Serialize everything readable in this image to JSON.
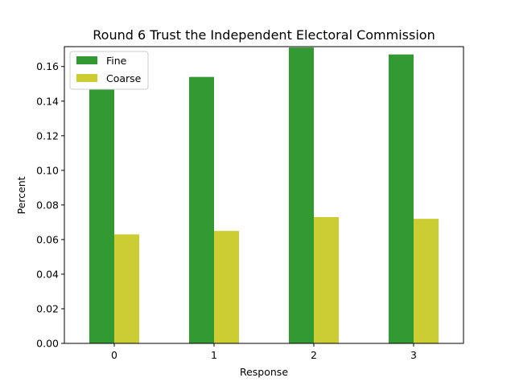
{
  "chart_data": {
    "type": "bar",
    "title": "Round 6 Trust the Independent Electoral Commission",
    "xlabel": "Response",
    "ylabel": "Percent",
    "categories": [
      "0",
      "1",
      "2",
      "3"
    ],
    "series": [
      {
        "name": "Fine",
        "color": "#339933",
        "values": [
          0.147,
          0.154,
          0.171,
          0.167
        ]
      },
      {
        "name": "Coarse",
        "color": "#cccc33",
        "values": [
          0.063,
          0.065,
          0.073,
          0.072
        ]
      }
    ],
    "ylim": [
      0,
      0.1715
    ],
    "yticks": [
      "0.00",
      "0.02",
      "0.04",
      "0.06",
      "0.08",
      "0.10",
      "0.12",
      "0.14",
      "0.16"
    ],
    "grid": false,
    "legend": "top-left"
  }
}
